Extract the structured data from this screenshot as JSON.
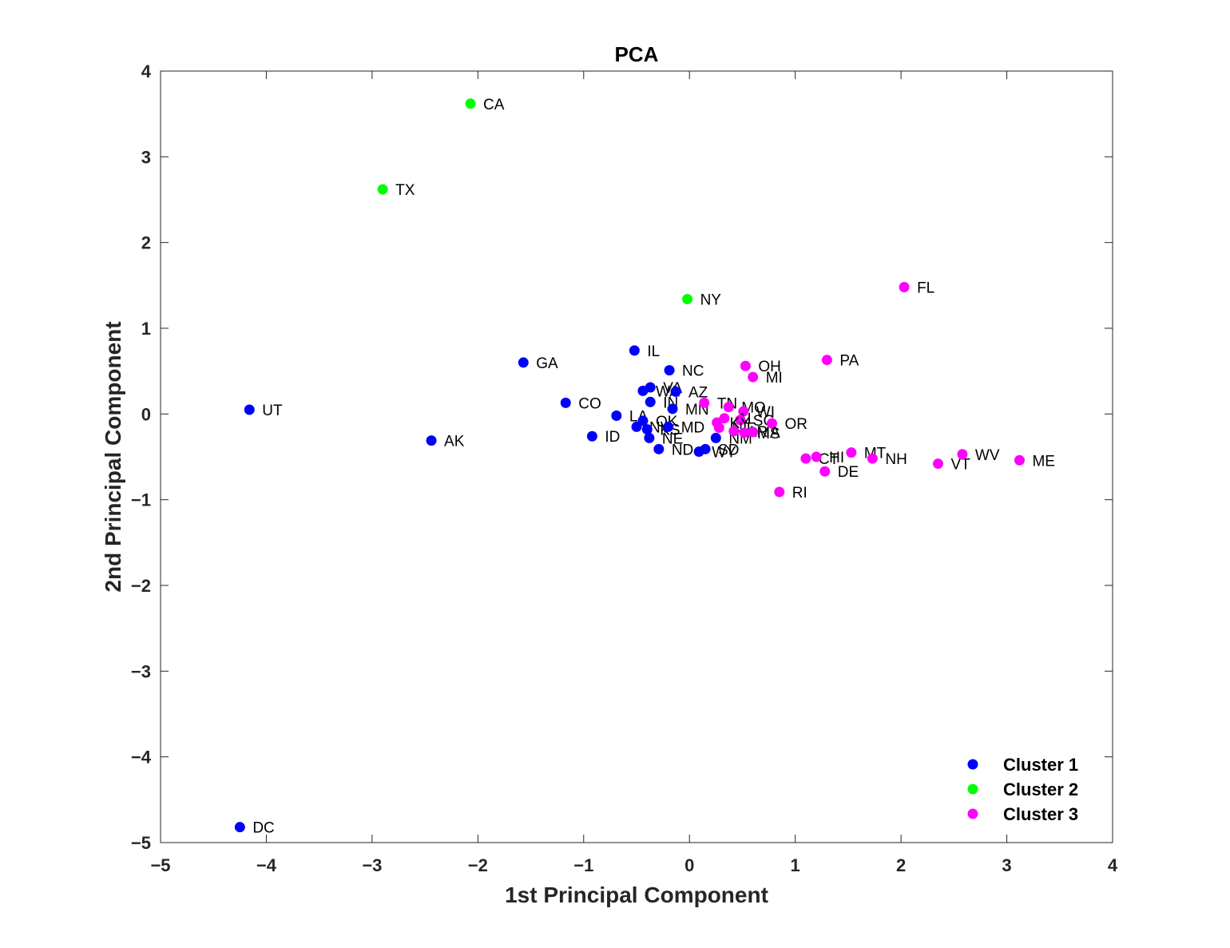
{
  "chart_data": {
    "type": "scatter",
    "title": "PCA",
    "xlabel": "1st Principal Component",
    "ylabel": "2nd Principal Component",
    "xlim": [
      -5,
      4
    ],
    "ylim": [
      -5,
      4
    ],
    "xticks": [
      -5,
      -4,
      -3,
      -2,
      -1,
      0,
      1,
      2,
      3,
      4
    ],
    "yticks": [
      -5,
      -4,
      -3,
      -2,
      -1,
      0,
      1,
      2,
      3,
      4
    ],
    "grid": false,
    "legend_position": "bottom-right",
    "series": [
      {
        "name": "Cluster 1",
        "color": "#0000ff",
        "points": [
          {
            "label": "UT",
            "x": -4.16,
            "y": 0.05
          },
          {
            "label": "DC",
            "x": -4.25,
            "y": -4.82
          },
          {
            "label": "AK",
            "x": -2.44,
            "y": -0.31
          },
          {
            "label": "GA",
            "x": -1.57,
            "y": 0.6
          },
          {
            "label": "CO",
            "x": -1.17,
            "y": 0.13
          },
          {
            "label": "ID",
            "x": -0.92,
            "y": -0.26
          },
          {
            "label": "LA",
            "x": -0.69,
            "y": -0.02
          },
          {
            "label": "IL",
            "x": -0.52,
            "y": 0.74
          },
          {
            "label": "NC",
            "x": -0.19,
            "y": 0.51
          },
          {
            "label": "VA",
            "x": -0.37,
            "y": 0.31
          },
          {
            "label": "WA",
            "x": -0.44,
            "y": 0.27
          },
          {
            "label": "AZ",
            "x": -0.13,
            "y": 0.26
          },
          {
            "label": "IN",
            "x": -0.37,
            "y": 0.14
          },
          {
            "label": "MN",
            "x": -0.16,
            "y": 0.06
          },
          {
            "label": "OK",
            "x": -0.44,
            "y": -0.08
          },
          {
            "label": "NV",
            "x": -0.5,
            "y": -0.15
          },
          {
            "label": "KS",
            "x": -0.4,
            "y": -0.18
          },
          {
            "label": "MD",
            "x": -0.2,
            "y": -0.15
          },
          {
            "label": "NE",
            "x": -0.38,
            "y": -0.28
          },
          {
            "label": "ND",
            "x": -0.29,
            "y": -0.41
          },
          {
            "label": "WY",
            "x": 0.09,
            "y": -0.44
          },
          {
            "label": "SD",
            "x": 0.15,
            "y": -0.41
          },
          {
            "label": "NM",
            "x": 0.25,
            "y": -0.28
          }
        ]
      },
      {
        "name": "Cluster 2",
        "color": "#00ff00",
        "points": [
          {
            "label": "CA",
            "x": -2.07,
            "y": 3.62
          },
          {
            "label": "TX",
            "x": -2.9,
            "y": 2.62
          },
          {
            "label": "NY",
            "x": -0.02,
            "y": 1.34
          }
        ]
      },
      {
        "name": "Cluster 3",
        "color": "#ff00ff",
        "points": [
          {
            "label": "FL",
            "x": 2.03,
            "y": 1.48
          },
          {
            "label": "PA",
            "x": 1.3,
            "y": 0.63
          },
          {
            "label": "OH",
            "x": 0.53,
            "y": 0.56
          },
          {
            "label": "MI",
            "x": 0.6,
            "y": 0.43
          },
          {
            "label": "TN",
            "x": 0.14,
            "y": 0.13
          },
          {
            "label": "MO",
            "x": 0.37,
            "y": 0.08
          },
          {
            "label": "WI",
            "x": 0.51,
            "y": 0.03
          },
          {
            "label": "AL",
            "x": 0.33,
            "y": -0.05
          },
          {
            "label": "SC",
            "x": 0.48,
            "y": -0.07
          },
          {
            "label": "KY",
            "x": 0.26,
            "y": -0.1
          },
          {
            "label": "OR",
            "x": 0.78,
            "y": -0.11
          },
          {
            "label": "NJ",
            "x": 0.28,
            "y": -0.16
          },
          {
            "label": "AR",
            "x": 0.42,
            "y": -0.2
          },
          {
            "label": "MS",
            "x": 0.52,
            "y": -0.22
          },
          {
            "label": "IA",
            "x": 0.6,
            "y": -0.21
          },
          {
            "label": "CT",
            "x": 1.1,
            "y": -0.52
          },
          {
            "label": "HI",
            "x": 1.2,
            "y": -0.5
          },
          {
            "label": "DE",
            "x": 1.28,
            "y": -0.67
          },
          {
            "label": "MT",
            "x": 1.53,
            "y": -0.45
          },
          {
            "label": "NH",
            "x": 1.73,
            "y": -0.52
          },
          {
            "label": "VT",
            "x": 2.35,
            "y": -0.58
          },
          {
            "label": "WV",
            "x": 2.58,
            "y": -0.47
          },
          {
            "label": "ME",
            "x": 3.12,
            "y": -0.54
          },
          {
            "label": "RI",
            "x": 0.85,
            "y": -0.91
          }
        ]
      }
    ]
  }
}
